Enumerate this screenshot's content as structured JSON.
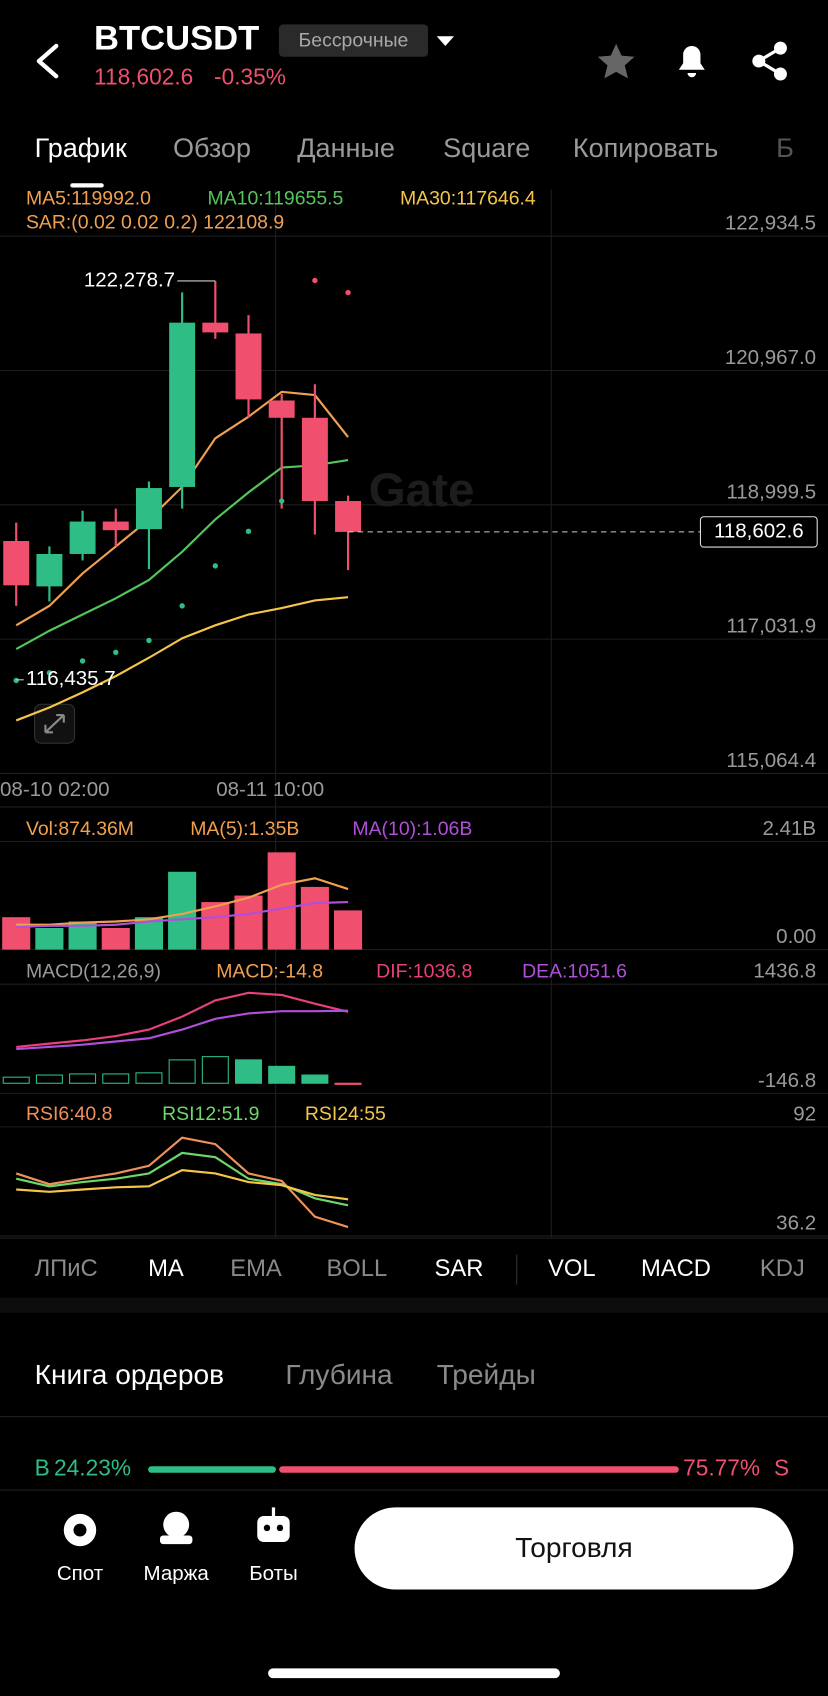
{
  "header": {
    "symbol": "BTCUSDT",
    "contract": "Бессрочные",
    "price": "118,602.6",
    "change": "-0.35%"
  },
  "tabs": [
    "График",
    "Обзор",
    "Данные",
    "Square",
    "Копировать",
    "Б"
  ],
  "watermark": "Gate",
  "chart_data": [
    {
      "type": "candlestick",
      "up_color": "#2ebd85",
      "down_color": "#f0506e",
      "open": [
        118469.0,
        117804.0,
        118279.0,
        118754.1,
        118643.2,
        119260.8,
        121667.7,
        121509.7,
        120527.7,
        120274.2,
        119054.9
      ],
      "high": [
        118738.2,
        118389.9,
        118912.4,
        118944.1,
        119340.0,
        122111.1,
        122278.7,
        121778.7,
        120622.7,
        120765.1,
        119134.1
      ],
      "low": [
        117518.9,
        117582.3,
        118184.0,
        118389.9,
        118057.3,
        118944.1,
        121430.2,
        120274.2,
        118944.1,
        118564.1,
        118041.7
      ],
      "close": [
        117819.8,
        118279.0,
        118754.1,
        118627.4,
        119245.0,
        121667.7,
        121525.2,
        120543.4,
        120274.2,
        119054.9,
        118602.6
      ],
      "series": [
        {
          "legend": "MA5:119992.0",
          "color": "#f0a050",
          "values": [
            117233.9,
            117518.9,
            117994.0,
            118389.9,
            118785.7,
            119260.8,
            119973.4,
            120290.1,
            120654.3,
            120606.8,
            119992.0
          ]
        },
        {
          "legend": "MA10:119655.5",
          "color": "#55c45a",
          "values": [
            116885.5,
            117154.7,
            117392.3,
            117629.8,
            117899.0,
            118310.7,
            118785.7,
            119181.6,
            119545.8,
            119577.5,
            119655.5
          ]
        },
        {
          "legend": "MA30:117646.4",
          "color": "#f5c54a",
          "values": [
            115840.4,
            116030.5,
            116252.1,
            116489.7,
            116758.9,
            117043.9,
            117233.9,
            117392.3,
            117487.3,
            117598.1,
            117646.4
          ]
        }
      ],
      "sar": {
        "legend": "SAR:(0.02 0.02 0.2) 122108.9",
        "color": "#f0a050",
        "values": [
          116426.4,
          116537.2,
          116711.4,
          116838.0,
          117012.2,
          117518.9,
          118104.8,
          118611.6,
          119054.9,
          122285.3,
          122108.9
        ]
      },
      "ylim": [
        115064.4,
        122934.5
      ],
      "yticks": [
        {
          "value": 115064.4,
          "label": "115,064.4"
        },
        {
          "value": 117031.9,
          "label": "117,031.9"
        },
        {
          "value": 118999.5,
          "label": "118,999.5"
        },
        {
          "value": 120967.0,
          "label": "120,967.0"
        },
        {
          "value": 122934.5,
          "label": "122,934.5"
        }
      ],
      "last_price": {
        "value": 118602.6,
        "label": "118,602.6"
      },
      "annotations": [
        {
          "value": 122278.7,
          "label": "122,278.7"
        },
        {
          "value": 116435.7,
          "label": "116,435.7"
        }
      ],
      "x_labels": [
        "08-10 02:00",
        "08-11 10:00"
      ]
    },
    {
      "type": "bar",
      "legend": "Vol:874.36M",
      "legend_color": "#f0a050",
      "values": [
        723000000,
        482000000,
        627000000,
        482000000,
        723000000,
        1735000000,
        1060000000,
        1205000000,
        2169000000,
        1398000000,
        874360000
      ],
      "series": [
        {
          "legend": "MA(5):1.35B",
          "color": "#f0a050",
          "values": [
            554000000,
            554000000,
            602500000,
            626600000,
            674800000,
            795300000,
            964000000,
            1156800000,
            1446000000,
            1590600000,
            1350000000
          ]
        },
        {
          "legend": "MA(10):1.06B",
          "color": "#b04fd8",
          "values": [
            506100000,
            530200000,
            530200000,
            554300000,
            626600000,
            674800000,
            723000000,
            795300000,
            915800000,
            1036300000,
            1060000000
          ]
        }
      ],
      "ylim": [
        0,
        2410000000
      ],
      "yticks": [
        {
          "value": 0,
          "label": "0.00"
        },
        {
          "value": 2410000000,
          "label": "2.41B"
        }
      ]
    },
    {
      "type": "macd",
      "title": "MACD(12,26,9)",
      "legend": "MACD:-14.8",
      "legend_color": "#f0a050",
      "values": [
        88,
        119,
        135,
        135,
        151,
        339,
        386,
        339,
        245,
        119,
        -14.8
      ],
      "series": [
        {
          "legend": "DIF:1036.8",
          "color": "#e8407a",
          "values": [
            527.4,
            574.8,
            621.8,
            684.2,
            778.2,
            966.4,
            1201.6,
            1311.4,
            1280.0,
            1154.6,
            1036.8
          ]
        },
        {
          "legend": "DEA:1051.6",
          "color": "#b04fd8",
          "values": [
            496.0,
            527.4,
            558.8,
            605.8,
            652.8,
            778.2,
            935.0,
            1013.4,
            1044.8,
            1044.8,
            1051.6
          ]
        }
      ],
      "ylim": [
        -146.8,
        1436.8
      ],
      "yticks": [
        -146.8,
        1436.8
      ]
    },
    {
      "type": "line",
      "series": [
        {
          "legend": "RSI6:40.8",
          "color": "#f0905a",
          "values": [
            68.2,
            62.7,
            65.5,
            68.2,
            72.1,
            86.5,
            83.2,
            68.2,
            64.4,
            46.1,
            40.8
          ]
        },
        {
          "legend": "RSI12:51.9",
          "color": "#6cd86a",
          "values": [
            65.5,
            61.6,
            63.8,
            65.5,
            68.2,
            78.7,
            76.5,
            65.5,
            62.7,
            55.5,
            51.9
          ]
        },
        {
          "legend": "RSI24:55",
          "color": "#f5c54a",
          "values": [
            60.0,
            58.8,
            60.0,
            61.1,
            61.6,
            69.9,
            68.2,
            63.8,
            62.2,
            57.2,
            55
          ]
        }
      ],
      "ylim": [
        36.2,
        92
      ],
      "yticks": [
        36.2,
        92
      ]
    }
  ],
  "indicators": [
    {
      "label": "ЛПиС",
      "active": false
    },
    {
      "label": "MA",
      "active": true
    },
    {
      "label": "EMA",
      "active": false
    },
    {
      "label": "BOLL",
      "active": false
    },
    {
      "label": "SAR",
      "active": true
    },
    {
      "label": "VOL",
      "active": true
    },
    {
      "label": "MACD",
      "active": true
    },
    {
      "label": "KDJ",
      "active": false
    }
  ],
  "book_tabs": [
    "Книга ордеров",
    "Глубина",
    "Трейды"
  ],
  "ratio": {
    "buy_side": "B",
    "buy": 24.23,
    "buy_label": "24.23%",
    "sell": 75.77,
    "sell_label": "75.77%",
    "sell_side": "S"
  },
  "nav": [
    "Спот",
    "Маржа",
    "Боты"
  ],
  "trade_button": "Торговля"
}
